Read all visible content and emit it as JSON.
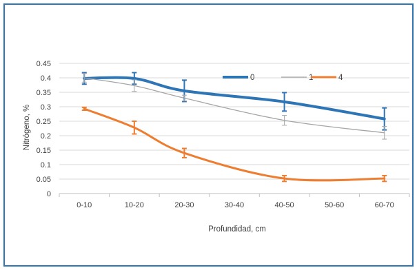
{
  "colors": {
    "frame_border": "#2E75B6",
    "gridline": "#d9d9d9",
    "axis": "#bfbfbf",
    "text": "#404040"
  },
  "chart_data": {
    "type": "line",
    "title": "",
    "xlabel": "Profundidad, cm",
    "ylabel": "Nitrógeno, %",
    "categories": [
      "0-10",
      "10-20",
      "20-30",
      "30-40",
      "40-50",
      "50-60",
      "60-70"
    ],
    "ylim": [
      0,
      0.45
    ],
    "yticks": [
      "0",
      "0.05",
      "0.1",
      "0.15",
      "0.2",
      "0.25",
      "0.3",
      "0.35",
      "0.4",
      "0.45"
    ],
    "grid": "horizontal",
    "legend_position": "top-right inside plot",
    "smooth": true,
    "series": [
      {
        "name": "0",
        "color": "#2E75B6",
        "line_weight": "thick",
        "values": [
          0.398,
          0.398,
          0.355,
          null,
          0.317,
          null,
          0.258
        ],
        "errors": [
          0.02,
          0.02,
          0.037,
          null,
          0.032,
          null,
          0.038
        ]
      },
      {
        "name": "1",
        "color": "#A5A5A5",
        "line_weight": "thin",
        "values": [
          0.4,
          0.373,
          0.33,
          null,
          0.253,
          null,
          0.21
        ],
        "errors": [
          0.015,
          0.02,
          0.01,
          null,
          0.017,
          null,
          0.022
        ]
      },
      {
        "name": "4",
        "color": "#ED7D31",
        "line_weight": "medium",
        "values": [
          0.293,
          0.228,
          0.14,
          null,
          0.052,
          null,
          0.052
        ],
        "errors": [
          0.005,
          0.022,
          0.016,
          null,
          0.01,
          null,
          0.01
        ]
      }
    ]
  }
}
